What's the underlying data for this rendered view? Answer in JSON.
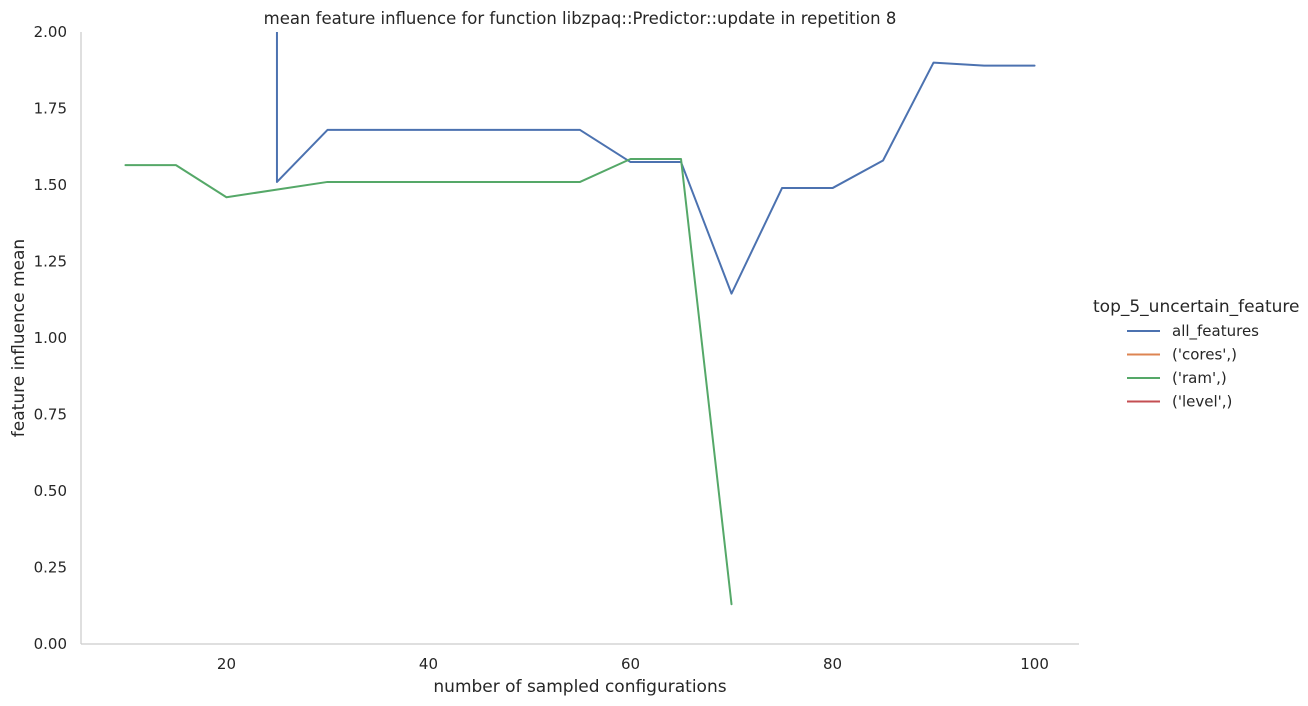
{
  "chart_data": {
    "type": "line",
    "title": "mean feature influence for function libzpaq::Predictor::update in repetition 8",
    "xlabel": "number of sampled configurations",
    "ylabel": "feature influence mean",
    "xlim": [
      5.6,
      104.4
    ],
    "ylim": [
      0,
      2.0
    ],
    "xticks": [
      20,
      40,
      60,
      80,
      100
    ],
    "yticks": [
      0.0,
      0.25,
      0.5,
      0.75,
      1.0,
      1.25,
      1.5,
      1.75,
      2.0
    ],
    "xtick_labels": [
      "20",
      "40",
      "60",
      "80",
      "100"
    ],
    "ytick_labels": [
      "0.00",
      "0.25",
      "0.50",
      "0.75",
      "1.00",
      "1.25",
      "1.50",
      "1.75",
      "2.00"
    ],
    "grid": false,
    "legend_position": "right",
    "legend_title": "top_5_uncertain_feature",
    "series": [
      {
        "name": "all_features",
        "color": "#4c72b0",
        "x": [
          25,
          25,
          30,
          35,
          40,
          45,
          50,
          55,
          60,
          65,
          70,
          75,
          80,
          85,
          90,
          95,
          100
        ],
        "y": [
          2.05,
          1.51,
          1.68,
          1.68,
          1.68,
          1.68,
          1.68,
          1.68,
          1.575,
          1.575,
          1.145,
          1.49,
          1.49,
          1.58,
          1.9,
          1.89,
          1.89
        ]
      },
      {
        "name": "('cores',)",
        "color": "#dd8452",
        "x": [],
        "y": []
      },
      {
        "name": "('ram',)",
        "color": "#55a868",
        "x": [
          10,
          15,
          20,
          30,
          35,
          40,
          45,
          50,
          55,
          60,
          65,
          70
        ],
        "y": [
          1.565,
          1.565,
          1.46,
          1.51,
          1.51,
          1.51,
          1.51,
          1.51,
          1.51,
          1.585,
          1.585,
          0.13
        ]
      },
      {
        "name": "('level',)",
        "color": "#c44e52",
        "x": [],
        "y": []
      }
    ]
  }
}
